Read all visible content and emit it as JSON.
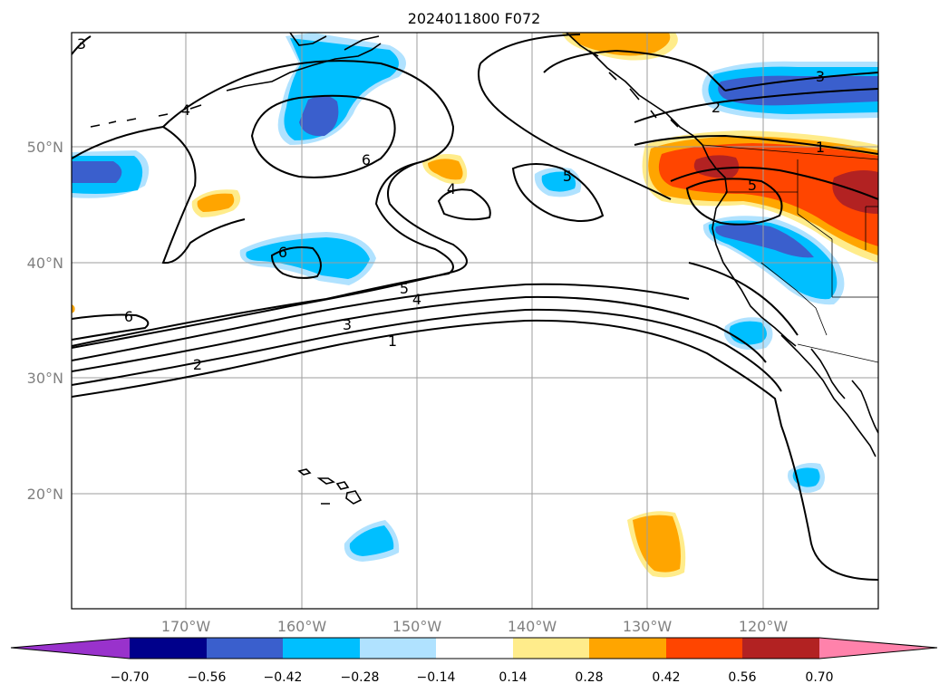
{
  "title": "2024011800 F072",
  "axes": {
    "lon_labels": [
      "170°W",
      "160°W",
      "150°W",
      "140°W",
      "130°W",
      "120°W"
    ],
    "lat_labels": [
      "50°N",
      "40°N",
      "30°N",
      "20°N"
    ],
    "lon_range": [
      -180,
      -110
    ],
    "lat_range": [
      10,
      60
    ],
    "grid": true
  },
  "colorbar": {
    "levels": [
      "−0.70",
      "−0.56",
      "−0.42",
      "−0.28",
      "−0.14",
      "0.14",
      "0.28",
      "0.42",
      "0.56",
      "0.70"
    ],
    "colors": [
      "#9932cc",
      "#00008b",
      "#3a5fcd",
      "#00bfff",
      "#b0e2ff",
      "#ffffff",
      "#ffec8b",
      "#ffa500",
      "#ff4500",
      "#b22222",
      "#ff82ab"
    ],
    "extend": "both",
    "placement": "bottom"
  },
  "contour_labels": [
    "6",
    "6",
    "6",
    "5",
    "5",
    "5",
    "4",
    "4",
    "4",
    "3",
    "3",
    "3",
    "2",
    "2",
    "1",
    "1"
  ],
  "colors": {
    "grid": "#9e9e9e",
    "contour": "#000000",
    "tick_text": "#808080"
  }
}
